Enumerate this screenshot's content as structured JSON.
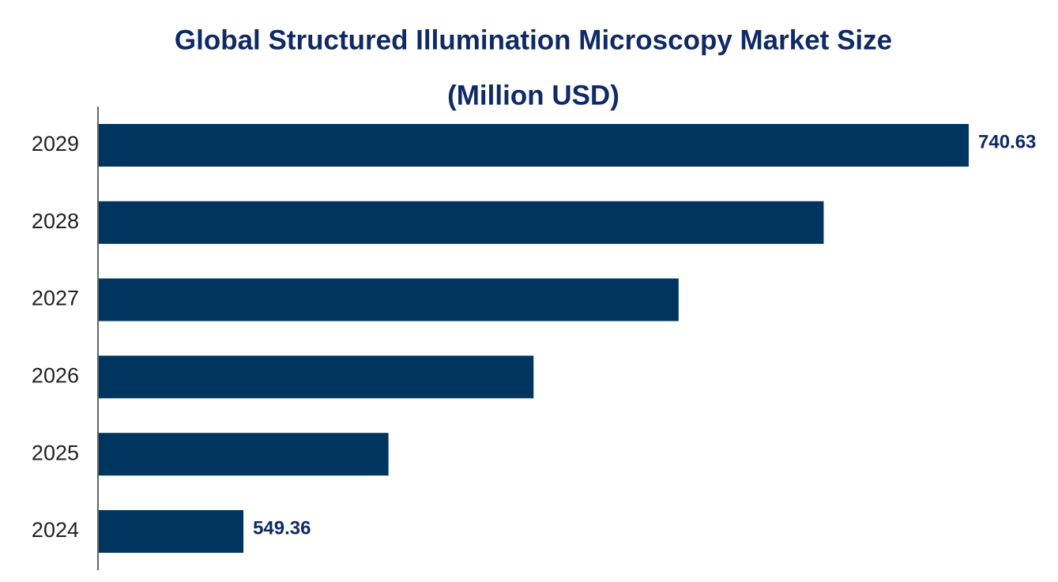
{
  "chart_data": {
    "type": "hbar",
    "title": "Global Structured Illumination Microscopy Market Size",
    "subtitle": "(Million USD)",
    "categories": [
      "2024",
      "2025",
      "2026",
      "2027",
      "2028",
      "2029"
    ],
    "values": [
      549.36,
      587.61,
      625.87,
      664.12,
      702.38,
      740.63
    ],
    "value_labels": [
      "549.36",
      null,
      null,
      null,
      null,
      "740.63"
    ],
    "color": "#003560",
    "xlim": [
      511,
      740.63
    ]
  }
}
